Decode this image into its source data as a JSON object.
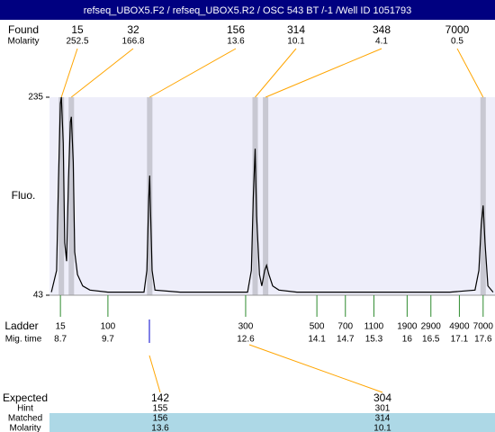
{
  "header": {
    "title": "refseq_UBOX5.F2 / refseq_UBOX5.R2 / OSC 543 BT  /-1  /Well ID 1051793"
  },
  "chart_data": {
    "type": "line",
    "y_label": "Fluo.",
    "color": "#000000",
    "plot_color": "#eeeefa",
    "x": [
      8.51,
      8.62,
      8.66,
      8.7,
      8.72,
      8.76,
      8.79,
      8.83,
      8.87,
      8.91,
      8.93,
      8.97,
      9.0,
      9.06,
      9.17,
      9.32,
      9.7,
      10.46,
      10.52,
      10.56,
      10.58,
      10.59,
      10.63,
      10.69,
      11.22,
      12.64,
      12.72,
      12.76,
      12.8,
      12.83,
      12.89,
      12.94,
      13.0,
      13.04,
      13.09,
      13.17,
      13.3,
      13.68,
      15.01,
      16.9,
      17.43,
      17.51,
      17.56,
      17.6,
      17.64,
      17.7,
      17.81
    ],
    "values": [
      46,
      67,
      155,
      229,
      235,
      190,
      94,
      76,
      155,
      211,
      216,
      172,
      85,
      63,
      52,
      48,
      46,
      46,
      67,
      137,
      159,
      137,
      67,
      48,
      46,
      46,
      67,
      137,
      185,
      120,
      63,
      52,
      67,
      72,
      63,
      52,
      48,
      46,
      46,
      46,
      48,
      67,
      111,
      130,
      94,
      52,
      46
    ],
    "xlim": [
      8.47,
      17.85
    ],
    "ylim": [
      43,
      235
    ],
    "yticks": [
      43,
      235
    ],
    "peaks": {
      "label": "Found",
      "molarity_label": "Molarity",
      "sizes": [
        15,
        32,
        156,
        314,
        348,
        7000
      ],
      "molarity": [
        252.5,
        166.8,
        13.6,
        10.1,
        4.1,
        0.5
      ],
      "x": [
        8.72,
        8.93,
        10.58,
        12.8,
        13.02,
        17.6
      ]
    },
    "ladder": {
      "label": "Ladder",
      "time_label": "Mig. time",
      "sizes": [
        15,
        100,
        300,
        500,
        700,
        1100,
        1900,
        2900,
        4900,
        7000
      ],
      "times": [
        8.7,
        9.7,
        12.6,
        14.1,
        14.7,
        15.3,
        16,
        16.5,
        17.1,
        17.6
      ]
    }
  },
  "expected_table": {
    "row_labels": [
      "Expected",
      "Hint",
      "Matched",
      "Molarity"
    ],
    "columns": [
      [
        142,
        155,
        156,
        13.6
      ],
      [
        304,
        301,
        314,
        10.1
      ]
    ]
  }
}
